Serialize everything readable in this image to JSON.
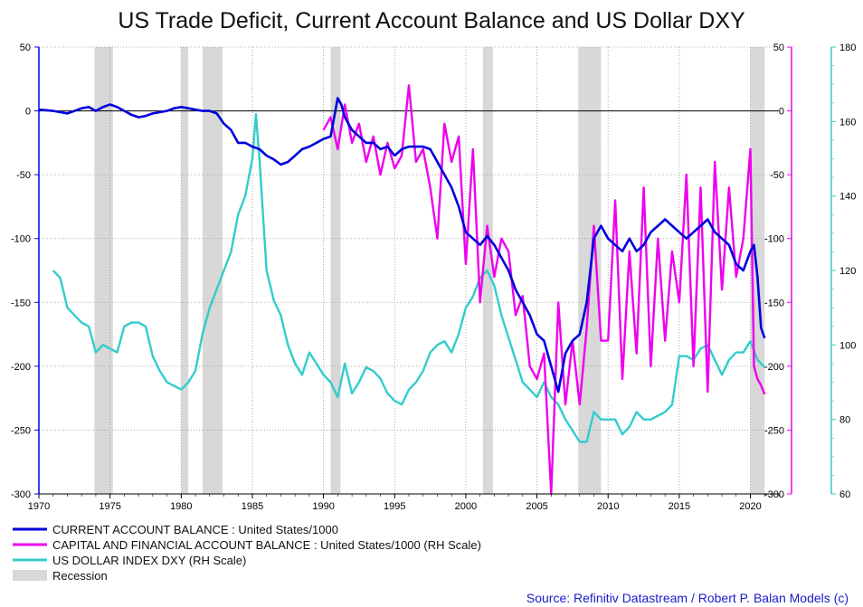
{
  "chart_data": {
    "type": "line",
    "title": "US Trade Deficit, Current Account Balance and US Dollar DXY",
    "source": "Source: Refinitiv Datastream / Robert P. Balan Models (c)",
    "x_axis": {
      "ticks": [
        "1970",
        "1975",
        "1980",
        "1985",
        "1990",
        "1995",
        "2000",
        "2005",
        "2010",
        "2015",
        "2020"
      ],
      "range": [
        1970,
        2022
      ]
    },
    "left_axis": {
      "ticks": [
        "50",
        "0",
        "-50",
        "-100",
        "-150",
        "-200",
        "-250",
        "-300"
      ],
      "range": [
        -300,
        50
      ],
      "color": "#0000ee"
    },
    "right_axis_1": {
      "ticks": [
        "50",
        "0",
        "-50",
        "-100",
        "-150",
        "-200",
        "-250",
        "-300"
      ],
      "range": [
        -300,
        50
      ],
      "color": "#ee00ee"
    },
    "right_axis_2": {
      "ticks": [
        "180",
        "160",
        "140",
        "120",
        "100",
        "80",
        "60"
      ],
      "range": [
        60,
        180
      ],
      "color": "#33cccc"
    },
    "recessions": [
      [
        1973.9,
        1975.2
      ],
      [
        1980.0,
        1980.5
      ],
      [
        1981.5,
        1982.9
      ],
      [
        1990.5,
        1991.2
      ],
      [
        2001.2,
        2001.9
      ],
      [
        2007.9,
        2009.5
      ],
      [
        2020.0,
        2021.0
      ]
    ],
    "grid": true,
    "legend_position": "bottom-left",
    "legend": [
      {
        "label": "CURRENT ACCOUNT BALANCE : United States/1000",
        "color": "#0000dd",
        "kind": "line"
      },
      {
        "label": "CAPITAL AND FINANCIAL ACCOUNT BALANCE : United States/1000 (RH Scale)",
        "color": "#ee00ee",
        "kind": "line"
      },
      {
        "label": "US DOLLAR INDEX DXY (RH Scale)",
        "color": "#33cccc",
        "kind": "line"
      },
      {
        "label": "Recession",
        "color": "#d8d8d8",
        "kind": "box"
      }
    ],
    "series": [
      {
        "name": "CURRENT ACCOUNT BALANCE : United States/1000",
        "axis": "left",
        "color": "#0000dd",
        "x": [
          1970.0,
          1971.0,
          1972.0,
          1972.5,
          1973.0,
          1973.5,
          1974.0,
          1974.5,
          1975.0,
          1975.5,
          1976.0,
          1976.5,
          1977.0,
          1977.5,
          1978.0,
          1978.5,
          1979.0,
          1979.5,
          1980.0,
          1980.5,
          1981.0,
          1981.5,
          1982.0,
          1982.5,
          1983.0,
          1983.5,
          1984.0,
          1984.5,
          1985.0,
          1985.5,
          1986.0,
          1986.5,
          1987.0,
          1987.5,
          1988.0,
          1988.5,
          1989.0,
          1989.5,
          1990.0,
          1990.5,
          1991.0,
          1991.25,
          1991.5,
          1992.0,
          1992.5,
          1993.0,
          1993.5,
          1994.0,
          1994.5,
          1995.0,
          1995.5,
          1996.0,
          1996.5,
          1997.0,
          1997.5,
          1998.0,
          1998.5,
          1999.0,
          1999.5,
          2000.0,
          2000.5,
          2001.0,
          2001.5,
          2002.0,
          2002.5,
          2003.0,
          2003.5,
          2004.0,
          2004.5,
          2005.0,
          2005.5,
          2006.0,
          2006.5,
          2007.0,
          2007.5,
          2008.0,
          2008.5,
          2009.0,
          2009.5,
          2010.0,
          2010.5,
          2011.0,
          2011.5,
          2012.0,
          2012.5,
          2013.0,
          2013.5,
          2014.0,
          2014.5,
          2015.0,
          2015.5,
          2016.0,
          2016.5,
          2017.0,
          2017.5,
          2018.0,
          2018.5,
          2019.0,
          2019.5,
          2020.0,
          2020.25,
          2020.5,
          2020.75,
          2021.0
        ],
        "y": [
          1,
          0,
          -2,
          0,
          2,
          3,
          0,
          3,
          5,
          3,
          0,
          -3,
          -5,
          -4,
          -2,
          -1,
          0,
          2,
          3,
          2,
          1,
          0,
          0,
          -2,
          -10,
          -15,
          -25,
          -25,
          -28,
          -30,
          -35,
          -38,
          -42,
          -40,
          -35,
          -30,
          -28,
          -25,
          -22,
          -20,
          10,
          5,
          -5,
          -15,
          -20,
          -25,
          -25,
          -30,
          -28,
          -35,
          -30,
          -28,
          -28,
          -28,
          -30,
          -40,
          -50,
          -60,
          -75,
          -95,
          -100,
          -105,
          -98,
          -105,
          -115,
          -125,
          -140,
          -150,
          -160,
          -175,
          -180,
          -200,
          -220,
          -190,
          -180,
          -175,
          -150,
          -100,
          -90,
          -100,
          -105,
          -110,
          -100,
          -110,
          -105,
          -95,
          -90,
          -85,
          -90,
          -95,
          -100,
          -95,
          -90,
          -85,
          -95,
          -100,
          -105,
          -120,
          -125,
          -110,
          -105,
          -130,
          -170,
          -178
        ]
      },
      {
        "name": "CAPITAL AND FINANCIAL ACCOUNT BALANCE : United States/1000 (RH Scale)",
        "axis": "right",
        "color": "#ee00ee",
        "x": [
          1990.0,
          1990.5,
          1991.0,
          1991.5,
          1992.0,
          1992.5,
          1993.0,
          1993.5,
          1994.0,
          1994.5,
          1995.0,
          1995.5,
          1996.0,
          1996.5,
          1997.0,
          1997.5,
          1998.0,
          1998.5,
          1999.0,
          1999.5,
          2000.0,
          2000.5,
          2001.0,
          2001.5,
          2002.0,
          2002.5,
          2003.0,
          2003.5,
          2004.0,
          2004.5,
          2005.0,
          2005.5,
          2006.0,
          2006.5,
          2007.0,
          2007.5,
          2008.0,
          2008.5,
          2009.0,
          2009.5,
          2010.0,
          2010.5,
          2011.0,
          2011.5,
          2012.0,
          2012.5,
          2013.0,
          2013.5,
          2014.0,
          2014.5,
          2015.0,
          2015.5,
          2016.0,
          2016.5,
          2017.0,
          2017.5,
          2018.0,
          2018.5,
          2019.0,
          2019.5,
          2020.0,
          2020.25,
          2020.5,
          2020.75,
          2021.0
        ],
        "y": [
          -15,
          -5,
          -30,
          5,
          -25,
          -10,
          -40,
          -20,
          -50,
          -25,
          -45,
          -35,
          20,
          -40,
          -30,
          -60,
          -100,
          -10,
          -40,
          -20,
          -120,
          -30,
          -150,
          -90,
          -130,
          -100,
          -110,
          -160,
          -145,
          -200,
          -210,
          -190,
          -300,
          -150,
          -230,
          -180,
          -230,
          -170,
          -90,
          -180,
          -180,
          -70,
          -210,
          -110,
          -190,
          -60,
          -200,
          -100,
          -180,
          -110,
          -150,
          -50,
          -200,
          -60,
          -220,
          -40,
          -140,
          -60,
          -130,
          -100,
          -30,
          -200,
          -210,
          -215,
          -222
        ]
      },
      {
        "name": "US DOLLAR INDEX DXY (RH Scale)",
        "axis": "right2",
        "color": "#33cccc",
        "x": [
          1971.0,
          1971.5,
          1972.0,
          1972.5,
          1973.0,
          1973.5,
          1974.0,
          1974.5,
          1975.0,
          1975.5,
          1976.0,
          1976.5,
          1977.0,
          1977.5,
          1978.0,
          1978.5,
          1979.0,
          1979.5,
          1980.0,
          1980.5,
          1981.0,
          1981.5,
          1982.0,
          1982.5,
          1983.0,
          1983.5,
          1984.0,
          1984.5,
          1985.0,
          1985.25,
          1985.5,
          1986.0,
          1986.5,
          1987.0,
          1987.5,
          1988.0,
          1988.5,
          1989.0,
          1989.5,
          1990.0,
          1990.5,
          1991.0,
          1991.5,
          1992.0,
          1992.5,
          1993.0,
          1993.5,
          1994.0,
          1994.5,
          1995.0,
          1995.5,
          1996.0,
          1996.5,
          1997.0,
          1997.5,
          1998.0,
          1998.5,
          1999.0,
          1999.5,
          2000.0,
          2000.5,
          2001.0,
          2001.5,
          2002.0,
          2002.5,
          2003.0,
          2003.5,
          2004.0,
          2004.5,
          2005.0,
          2005.5,
          2006.0,
          2006.5,
          2007.0,
          2007.5,
          2008.0,
          2008.5,
          2009.0,
          2009.5,
          2010.0,
          2010.5,
          2011.0,
          2011.5,
          2012.0,
          2012.5,
          2013.0,
          2013.5,
          2014.0,
          2014.5,
          2015.0,
          2015.5,
          2016.0,
          2016.5,
          2017.0,
          2017.5,
          2018.0,
          2018.5,
          2019.0,
          2019.5,
          2020.0,
          2020.5,
          2021.0
        ],
        "y": [
          120,
          118,
          110,
          108,
          106,
          105,
          98,
          100,
          99,
          98,
          105,
          106,
          106,
          105,
          97,
          93,
          90,
          89,
          88,
          90,
          93,
          103,
          110,
          115,
          120,
          125,
          135,
          140,
          150,
          162,
          150,
          120,
          112,
          108,
          100,
          95,
          92,
          98,
          95,
          92,
          90,
          86,
          95,
          87,
          90,
          94,
          93,
          91,
          87,
          85,
          84,
          88,
          90,
          93,
          98,
          100,
          101,
          98,
          103,
          110,
          113,
          118,
          120,
          116,
          108,
          102,
          96,
          90,
          88,
          86,
          90,
          86,
          84,
          80,
          77,
          74,
          74,
          82,
          80,
          80,
          80,
          76,
          78,
          82,
          80,
          80,
          81,
          82,
          84,
          97,
          97,
          96,
          99,
          100,
          96,
          92,
          96,
          98,
          98,
          101,
          96,
          94
        ]
      }
    ]
  }
}
